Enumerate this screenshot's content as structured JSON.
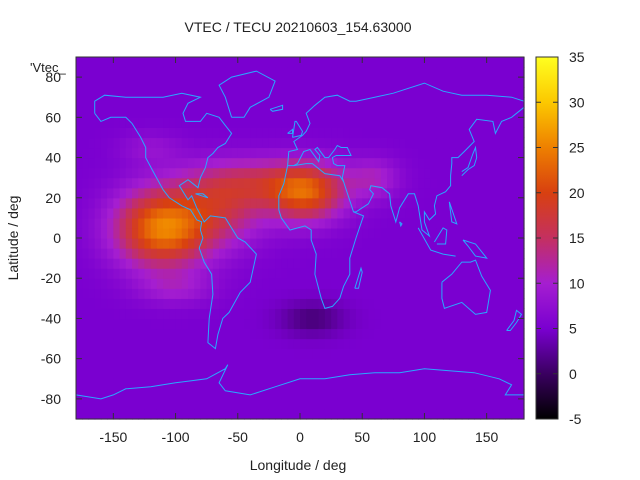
{
  "chart_data": {
    "type": "heatmap",
    "title": "VTEC / TECU 20210603_154.63000",
    "xlabel": "Longitude / deg",
    "ylabel": "Latitude / deg",
    "series_key": "'Vtec_",
    "xlim": [
      -180,
      180
    ],
    "ylim": [
      -90,
      90
    ],
    "x_ticks": [
      -150,
      -100,
      -50,
      0,
      50,
      100,
      150
    ],
    "y_ticks": [
      -80,
      -60,
      -40,
      -20,
      0,
      20,
      40,
      60,
      80
    ],
    "colorbar": {
      "range": [
        -5,
        35
      ],
      "ticks": [
        -5,
        0,
        5,
        10,
        15,
        20,
        25,
        30,
        35
      ],
      "palette": [
        "#000000",
        "#3a0060",
        "#7a00d0",
        "#a51ed0",
        "#c43060",
        "#d84010",
        "#ee8000",
        "#fcc800",
        "#ffff20"
      ]
    },
    "grid_resolution_deg": 5,
    "background_level": 5,
    "anomalies": [
      {
        "lon": -110,
        "lat": 5,
        "amp": 20,
        "sx": 38,
        "sy": 19
      },
      {
        "lon": -60,
        "lat": 15,
        "amp": 8,
        "sx": 35,
        "sy": 18
      },
      {
        "lon": 5,
        "lat": 22,
        "amp": 14,
        "sx": 30,
        "sy": 14
      },
      {
        "lon": -30,
        "lat": 28,
        "amp": 8,
        "sx": 60,
        "sy": 12
      },
      {
        "lon": 60,
        "lat": 30,
        "amp": 5,
        "sx": 20,
        "sy": 10
      },
      {
        "lon": -120,
        "lat": 45,
        "amp": 3,
        "sx": 25,
        "sy": 8
      },
      {
        "lon": 10,
        "lat": -40,
        "amp": -4,
        "sx": 25,
        "sy": 8
      },
      {
        "lon": -100,
        "lat": -25,
        "amp": 4,
        "sx": 30,
        "sy": 8
      }
    ],
    "coastline_color": "#29a8ff",
    "grid": false,
    "legend_placement": "right"
  }
}
